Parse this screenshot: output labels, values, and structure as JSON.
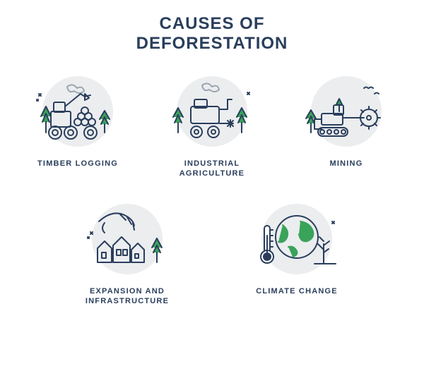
{
  "title": {
    "line1": "CAUSES OF",
    "line2": "DEFORESTATION",
    "fontsize": 24,
    "color": "#2a3e5c"
  },
  "style": {
    "circle_bg": "#ebedef",
    "stroke": "#2a3e5c",
    "accent_green": "#3aa35a",
    "accent_green_dark": "#2e7d45",
    "smoke": "#9ba4b0",
    "label_color": "#2a3e5c",
    "label_fontsize": 11
  },
  "items": [
    {
      "id": "timber",
      "label": "TIMBER LOGGING",
      "icon": "timber"
    },
    {
      "id": "agri",
      "label": "INDUSTRIAL\nAGRICULTURE",
      "icon": "agriculture"
    },
    {
      "id": "mining",
      "label": "MINING",
      "icon": "mining"
    },
    {
      "id": "expand",
      "label": "EXPANSION AND\nINFRASTRUCTURE",
      "icon": "expansion"
    },
    {
      "id": "climate",
      "label": "CLIMATE CHANGE",
      "icon": "climate"
    }
  ]
}
